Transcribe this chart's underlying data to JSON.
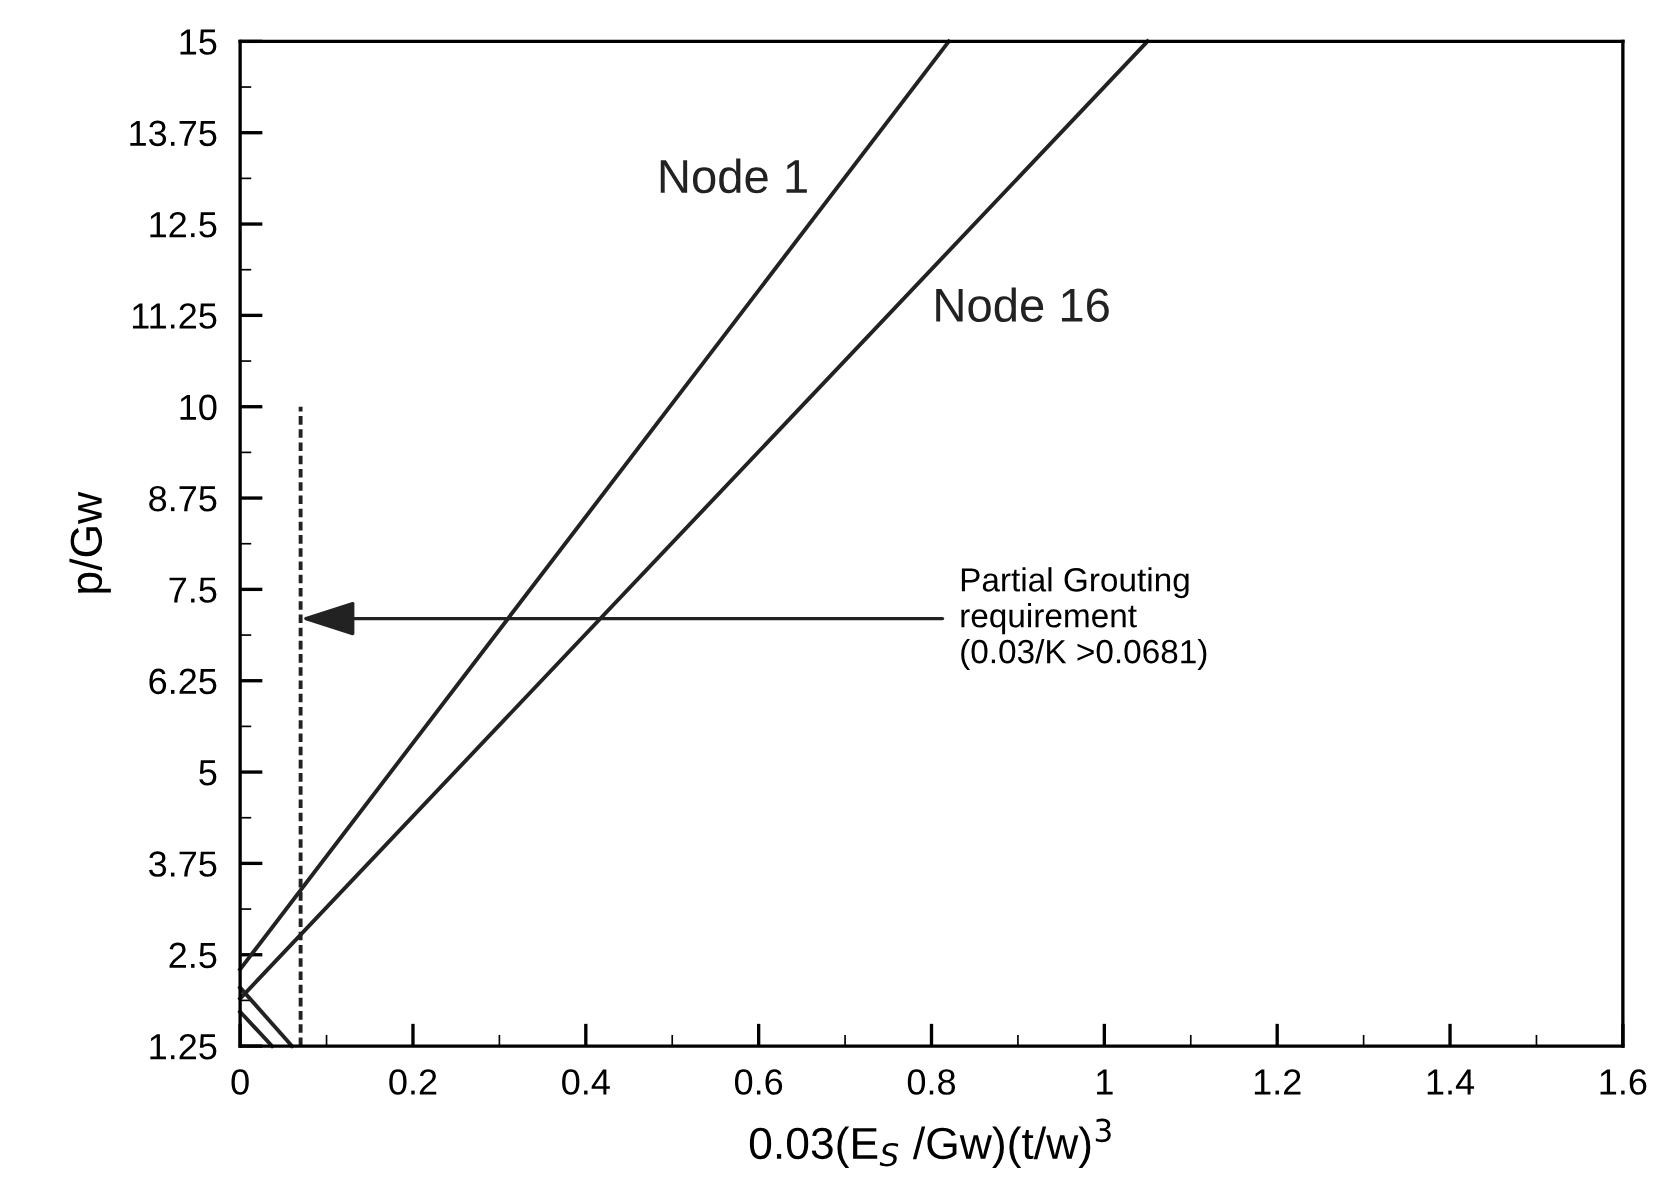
{
  "chart_data": {
    "type": "line",
    "xlabel": "0.03(E$_{S}$ /Gw)(t/w)$^{3}$",
    "ylabel": "p/Gw",
    "xlim": [
      0,
      1.6
    ],
    "ylim": [
      1.25,
      15
    ],
    "xticks": [
      0,
      0.2,
      0.4,
      0.6,
      0.8,
      1,
      1.2,
      1.4,
      1.6
    ],
    "yticks": [
      1.25,
      2.5,
      3.75,
      5,
      6.25,
      7.5,
      8.75,
      10,
      11.25,
      12.5,
      13.75,
      15
    ],
    "grid": false,
    "legend": false,
    "marker": "none",
    "series": [
      {
        "name": "Node 1",
        "color": "#222222",
        "x": [
          0,
          0.82
        ],
        "values": [
          2.3,
          15
        ]
      },
      {
        "name": "Node 16",
        "color": "#222222",
        "x": [
          0,
          1.05
        ],
        "values": [
          1.9,
          15
        ]
      },
      {
        "color": "#222222",
        "x": [
          0,
          0.06
        ],
        "values": [
          2.05,
          1.25
        ]
      },
      {
        "color": "#222222",
        "x": [
          0,
          0.037
        ],
        "values": [
          1.72,
          1.25
        ]
      },
      {
        "color": "#222222",
        "x": [
          0.07,
          0.07
        ],
        "values": [
          1.25,
          10
        ],
        "line_style": "dashed"
      }
    ],
    "annotations": [
      {
        "text": "Partial Grouting\nrequirement\n(0.03/K >0.0681)",
        "x": 0.07,
        "y": 7.1
      }
    ]
  }
}
